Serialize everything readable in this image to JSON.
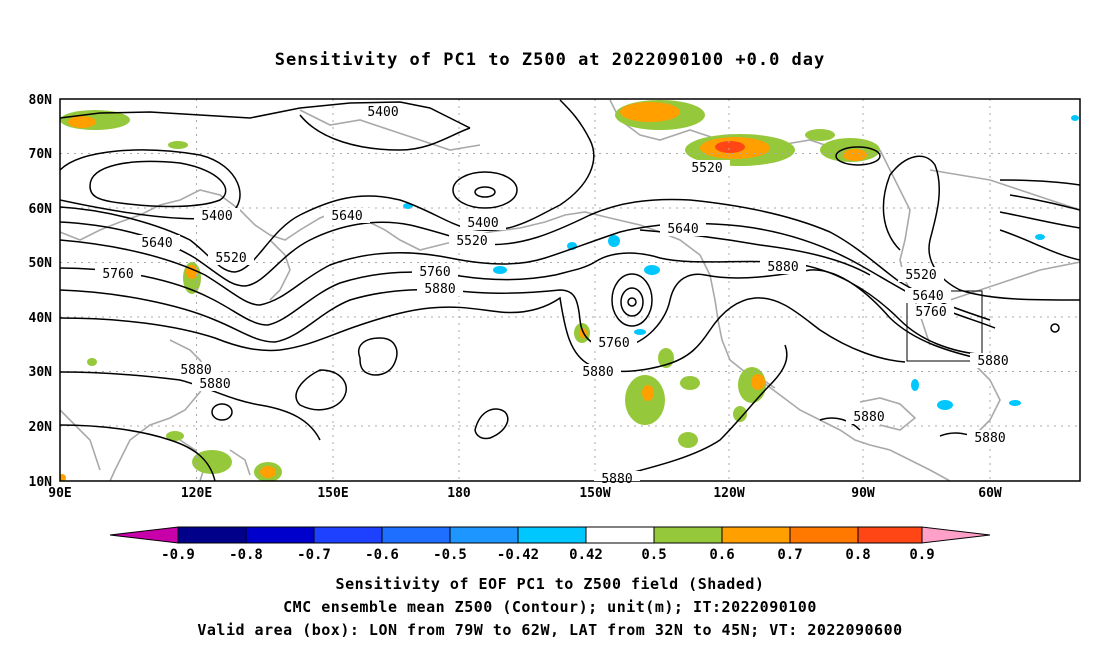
{
  "title": "Sensitivity of PC1 to Z500 at 2022090100 +0.0 day",
  "map": {
    "lat_labels": [
      "80N",
      "70N",
      "60N",
      "50N",
      "40N",
      "30N",
      "20N",
      "10N"
    ],
    "lon_labels": [
      "90E",
      "120E",
      "150E",
      "180",
      "150W",
      "120W",
      "90W",
      "60W"
    ],
    "contour_labels": [
      "5400",
      "5520",
      "5640",
      "5760",
      "5880"
    ],
    "valid_box": {
      "lon_from": "79W",
      "lon_to": "62W",
      "lat_from": "32N",
      "lat_to": "45N"
    }
  },
  "colorbar": {
    "labels": [
      "-0.9",
      "-0.8",
      "-0.7",
      "-0.6",
      "-0.5",
      "-0.42",
      "0.42",
      "0.5",
      "0.6",
      "0.7",
      "0.8",
      "0.9"
    ],
    "colors": [
      "#c800aa",
      "#00008b",
      "#0000cd",
      "#1e40ff",
      "#1e6eff",
      "#1e96ff",
      "#00c8ff",
      "#ffffff",
      "#96c83c",
      "#ffa000",
      "#ff7800",
      "#ff4614",
      "#ff0000",
      "#ffa0c8"
    ]
  },
  "captions": {
    "line1": "Sensitivity of EOF PC1 to Z500 field (Shaded)",
    "line2": "CMC ensemble mean Z500 (Contour); unit(m); IT:2022090100",
    "line3": "Valid area (box): LON from 79W to 62W, LAT from 32N to 45N; VT: 2022090600"
  }
}
